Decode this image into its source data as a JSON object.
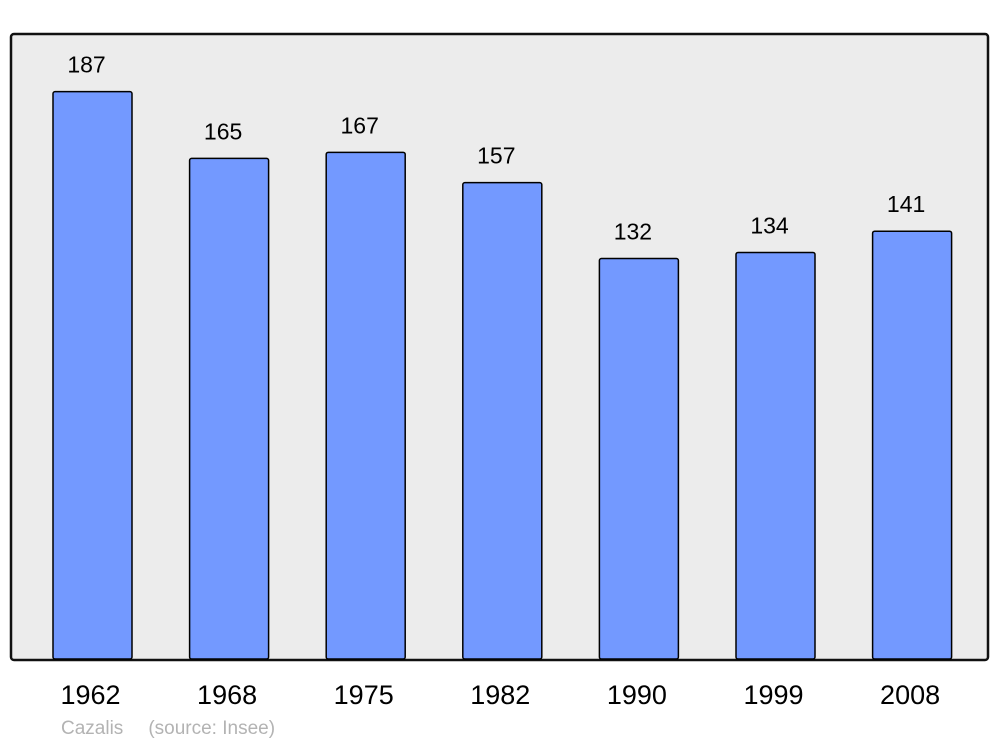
{
  "chart_data": {
    "type": "bar",
    "title": "",
    "xlabel": "",
    "ylabel": "",
    "categories": [
      "1962",
      "1968",
      "1975",
      "1982",
      "1990",
      "1999",
      "2008"
    ],
    "values": [
      187,
      165,
      167,
      157,
      132,
      134,
      141
    ],
    "data_labels": [
      "187",
      "165",
      "167",
      "157",
      "132",
      "134",
      "141"
    ],
    "ylim": [
      0,
      206
    ],
    "grid": false,
    "legend": "none",
    "colors": {
      "bar": "#7399ff",
      "bar_stroke": "#000000",
      "plot_background": "#ececec",
      "caption": "#b3b3b3"
    }
  },
  "caption": {
    "place": "Cazalis",
    "source": "(source: Insee)"
  }
}
